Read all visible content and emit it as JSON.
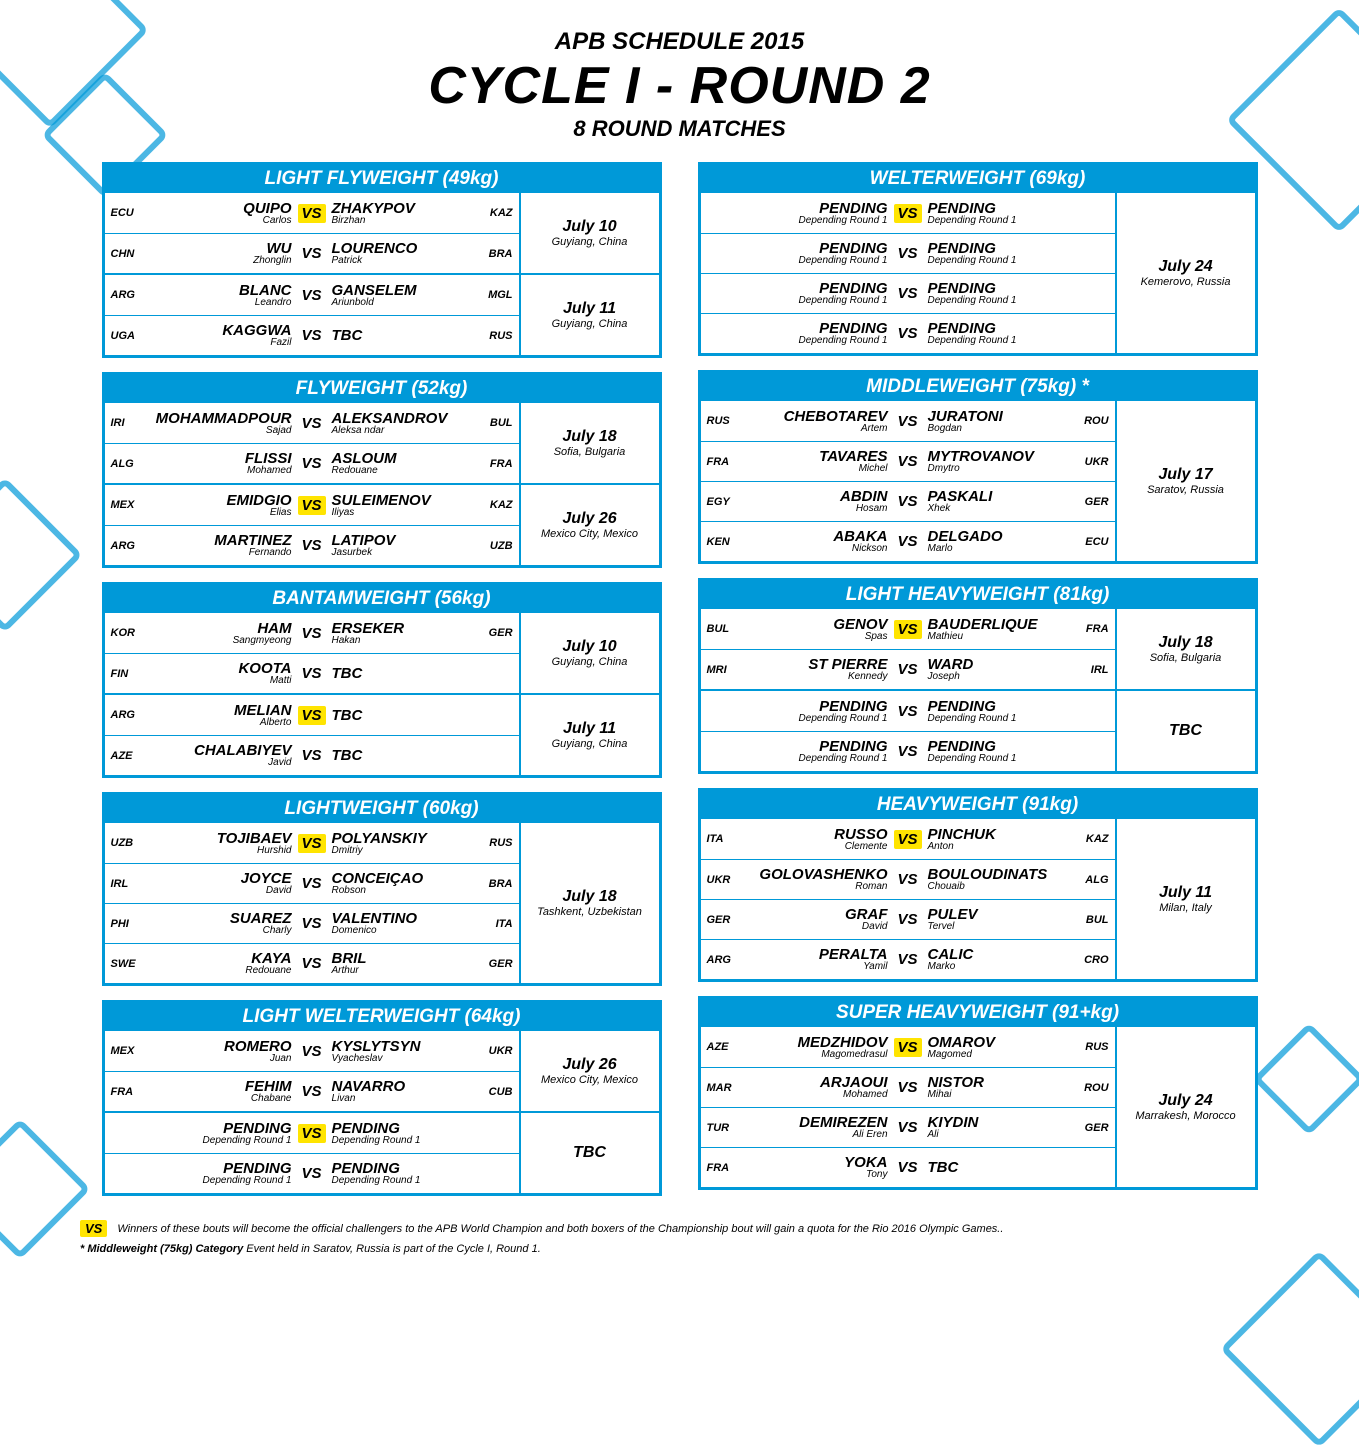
{
  "colors": {
    "primary": "#0099d8",
    "highlight": "#ffe400",
    "white": "#ffffff",
    "text": "#000000"
  },
  "header": {
    "sub1": "APB SCHEDULE 2015",
    "title": "CYCLE I - ROUND 2",
    "sub2": "8 ROUND MATCHES"
  },
  "left": [
    {
      "title": "LIGHT FLYWEIGHT (49kg)",
      "groups": [
        {
          "date": "July 10",
          "loc": "Guyiang, China",
          "matches": [
            {
              "cl": "ECU",
              "ll": "QUIPO",
              "lf": "Carlos",
              "hl": true,
              "rl": "ZHAKYPOV",
              "rf": "Birzhan",
              "cr": "KAZ"
            },
            {
              "cl": "CHN",
              "ll": "WU",
              "lf": "Zhonglin",
              "hl": false,
              "rl": "LOURENCO",
              "rf": "Patrick",
              "cr": "BRA"
            }
          ]
        },
        {
          "date": "July 11",
          "loc": "Guyiang, China",
          "matches": [
            {
              "cl": "ARG",
              "ll": "BLANC",
              "lf": "Leandro",
              "hl": false,
              "rl": "GANSELEM",
              "rf": "Ariunbold",
              "cr": "MGL"
            },
            {
              "cl": "UGA",
              "ll": "KAGGWA",
              "lf": "Fazil",
              "hl": false,
              "rl": "TBC",
              "rf": "",
              "cr": "RUS"
            }
          ]
        }
      ]
    },
    {
      "title": "FLYWEIGHT (52kg)",
      "groups": [
        {
          "date": "July 18",
          "loc": "Sofia, Bulgaria",
          "matches": [
            {
              "cl": "IRI",
              "ll": "MOHAMMADPOUR",
              "lf": "Sajad",
              "hl": false,
              "rl": "ALEKSANDROV",
              "rf": "Aleksa ndar",
              "cr": "BUL"
            },
            {
              "cl": "ALG",
              "ll": "FLISSI",
              "lf": "Mohamed",
              "hl": false,
              "rl": "ASLOUM",
              "rf": "Redouane",
              "cr": "FRA"
            }
          ]
        },
        {
          "date": "July 26",
          "loc": "Mexico City, Mexico",
          "matches": [
            {
              "cl": "MEX",
              "ll": "EMIDGIO",
              "lf": "Elias",
              "hl": true,
              "rl": "SULEIMENOV",
              "rf": "Iliyas",
              "cr": "KAZ"
            },
            {
              "cl": "ARG",
              "ll": "MARTINEZ",
              "lf": "Fernando",
              "hl": false,
              "rl": "LATIPOV",
              "rf": "Jasurbek",
              "cr": "UZB"
            }
          ]
        }
      ]
    },
    {
      "title": "BANTAMWEIGHT (56kg)",
      "groups": [
        {
          "date": "July 10",
          "loc": "Guyiang, China",
          "matches": [
            {
              "cl": "KOR",
              "ll": "HAM",
              "lf": "Sangmyeong",
              "hl": false,
              "rl": "ERSEKER",
              "rf": "Hakan",
              "cr": "GER"
            },
            {
              "cl": "FIN",
              "ll": "KOOTA",
              "lf": "Matti",
              "hl": false,
              "rl": "TBC",
              "rf": "",
              "cr": ""
            }
          ]
        },
        {
          "date": "July 11",
          "loc": "Guyiang, China",
          "matches": [
            {
              "cl": "ARG",
              "ll": "MELIAN",
              "lf": "Alberto",
              "hl": true,
              "rl": "TBC",
              "rf": "",
              "cr": ""
            },
            {
              "cl": "AZE",
              "ll": "CHALABIYEV",
              "lf": "Javid",
              "hl": false,
              "rl": "TBC",
              "rf": "",
              "cr": ""
            }
          ]
        }
      ]
    },
    {
      "title": "LIGHTWEIGHT (60kg)",
      "groups": [
        {
          "date": "July 18",
          "loc": "Tashkent, Uzbekistan",
          "matches": [
            {
              "cl": "UZB",
              "ll": "TOJIBAEV",
              "lf": "Hurshid",
              "hl": true,
              "rl": "POLYANSKIY",
              "rf": "Dmitriy",
              "cr": "RUS"
            },
            {
              "cl": "IRL",
              "ll": "JOYCE",
              "lf": "David",
              "hl": false,
              "rl": "CONCEIÇAO",
              "rf": "Robson",
              "cr": "BRA"
            },
            {
              "cl": "PHI",
              "ll": "SUAREZ",
              "lf": "Charly",
              "hl": false,
              "rl": "VALENTINO",
              "rf": "Domenico",
              "cr": "ITA"
            },
            {
              "cl": "SWE",
              "ll": "KAYA",
              "lf": "Redouane",
              "hl": false,
              "rl": "BRIL",
              "rf": "Arthur",
              "cr": "GER"
            }
          ]
        }
      ]
    },
    {
      "title": "LIGHT WELTERWEIGHT (64kg)",
      "groups": [
        {
          "date": "July 26",
          "loc": "Mexico City, Mexico",
          "matches": [
            {
              "cl": "MEX",
              "ll": "ROMERO",
              "lf": "Juan",
              "hl": false,
              "rl": "KYSLYTSYN",
              "rf": "Vyacheslav",
              "cr": "UKR"
            },
            {
              "cl": "FRA",
              "ll": "FEHIM",
              "lf": "Chabane",
              "hl": false,
              "rl": "NAVARRO",
              "rf": "Livan",
              "cr": "CUB"
            }
          ]
        },
        {
          "date": "TBC",
          "loc": "",
          "matches": [
            {
              "cl": "",
              "ll": "PENDING",
              "lf": "Depending  Round 1",
              "hl": true,
              "rl": "PENDING",
              "rf": "Depending  Round 1",
              "cr": ""
            },
            {
              "cl": "",
              "ll": "PENDING",
              "lf": "Depending  Round 1",
              "hl": false,
              "rl": "PENDING",
              "rf": "Depending  Round 1",
              "cr": ""
            }
          ]
        }
      ]
    }
  ],
  "right": [
    {
      "title": "WELTERWEIGHT (69kg)",
      "groups": [
        {
          "date": "July 24",
          "loc": "Kemerovo, Russia",
          "matches": [
            {
              "cl": "",
              "ll": "PENDING",
              "lf": "Depending  Round 1",
              "hl": true,
              "rl": "PENDING",
              "rf": "Depending  Round 1",
              "cr": ""
            },
            {
              "cl": "",
              "ll": "PENDING",
              "lf": "Depending  Round 1",
              "hl": false,
              "rl": "PENDING",
              "rf": "Depending  Round 1",
              "cr": ""
            },
            {
              "cl": "",
              "ll": "PENDING",
              "lf": "Depending  Round 1",
              "hl": false,
              "rl": "PENDING",
              "rf": "Depending  Round 1",
              "cr": ""
            },
            {
              "cl": "",
              "ll": "PENDING",
              "lf": "Depending  Round 1",
              "hl": false,
              "rl": "PENDING",
              "rf": "Depending  Round 1",
              "cr": ""
            }
          ]
        }
      ]
    },
    {
      "title": "MIDDLEWEIGHT (75kg) *",
      "groups": [
        {
          "date": "July 17",
          "loc": "Saratov, Russia",
          "matches": [
            {
              "cl": "RUS",
              "ll": "CHEBOTAREV",
              "lf": "Artem",
              "hl": false,
              "rl": "JURATONI",
              "rf": "Bogdan",
              "cr": "ROU"
            },
            {
              "cl": "FRA",
              "ll": "TAVARES",
              "lf": "Michel",
              "hl": false,
              "rl": "MYTROVANOV",
              "rf": "Dmytro",
              "cr": "UKR"
            },
            {
              "cl": "EGY",
              "ll": "ABDIN",
              "lf": "Hosam",
              "hl": false,
              "rl": "PASKALI",
              "rf": "Xhek",
              "cr": "GER"
            },
            {
              "cl": "KEN",
              "ll": "ABAKA",
              "lf": "Nickson",
              "hl": false,
              "rl": "DELGADO",
              "rf": "Marlo",
              "cr": "ECU"
            }
          ]
        }
      ]
    },
    {
      "title": "LIGHT HEAVYWEIGHT (81kg)",
      "groups": [
        {
          "date": "July 18",
          "loc": "Sofia, Bulgaria",
          "matches": [
            {
              "cl": "BUL",
              "ll": "GENOV",
              "lf": "Spas",
              "hl": true,
              "rl": "BAUDERLIQUE",
              "rf": "Mathieu",
              "cr": "FRA"
            },
            {
              "cl": "MRI",
              "ll": "ST PIERRE",
              "lf": "Kennedy",
              "hl": false,
              "rl": "WARD",
              "rf": "Joseph",
              "cr": "IRL"
            }
          ]
        },
        {
          "date": "TBC",
          "loc": "",
          "matches": [
            {
              "cl": "",
              "ll": "PENDING",
              "lf": "Depending  Round 1",
              "hl": false,
              "rl": "PENDING",
              "rf": "Depending  Round 1",
              "cr": ""
            },
            {
              "cl": "",
              "ll": "PENDING",
              "lf": "Depending  Round 1",
              "hl": false,
              "rl": "PENDING",
              "rf": "Depending  Round 1",
              "cr": ""
            }
          ]
        }
      ]
    },
    {
      "title": "HEAVYWEIGHT (91kg)",
      "groups": [
        {
          "date": "July 11",
          "loc": "Milan, Italy",
          "matches": [
            {
              "cl": "ITA",
              "ll": "RUSSO",
              "lf": "Clemente",
              "hl": true,
              "rl": "PINCHUK",
              "rf": "Anton",
              "cr": "KAZ"
            },
            {
              "cl": "UKR",
              "ll": "GOLOVASHENKO",
              "lf": "Roman",
              "hl": false,
              "rl": "BOULOUDINATS",
              "rf": "Chouaib",
              "cr": "ALG"
            },
            {
              "cl": "GER",
              "ll": "GRAF",
              "lf": "David",
              "hl": false,
              "rl": "PULEV",
              "rf": "Tervel",
              "cr": "BUL"
            },
            {
              "cl": "ARG",
              "ll": "PERALTA",
              "lf": "Yamil",
              "hl": false,
              "rl": "CALIC",
              "rf": "Marko",
              "cr": "CRO"
            }
          ]
        }
      ]
    },
    {
      "title": "SUPER HEAVYWEIGHT (91+kg)",
      "groups": [
        {
          "date": "July 24",
          "loc": "Marrakesh, Morocco",
          "matches": [
            {
              "cl": "AZE",
              "ll": "MEDZHIDOV",
              "lf": "Magomedrasul",
              "hl": true,
              "rl": "OMAROV",
              "rf": "Magomed",
              "cr": "RUS"
            },
            {
              "cl": "MAR",
              "ll": "ARJAOUI",
              "lf": "Mohamed",
              "hl": false,
              "rl": "NISTOR",
              "rf": "Mihai",
              "cr": "ROU"
            },
            {
              "cl": "TUR",
              "ll": "DEMIREZEN",
              "lf": "Ali Eren",
              "hl": false,
              "rl": "KIYDIN",
              "rf": "Ali",
              "cr": "GER"
            },
            {
              "cl": "FRA",
              "ll": "YOKA",
              "lf": "Tony",
              "hl": false,
              "rl": "TBC",
              "rf": "",
              "cr": ""
            }
          ]
        }
      ]
    }
  ],
  "footnotes": {
    "vs": "VS",
    "note1": "Winners of these bouts will become the official challengers to the APB World Champion and both boxers of the Championship bout will gain a quota for the Rio 2016 Olympic Games..",
    "note2_bold": "* Middleweight (75kg) Category",
    "note2_rest": " Event held in Saratov,  Russia is part of the Cycle I, Round 1."
  }
}
